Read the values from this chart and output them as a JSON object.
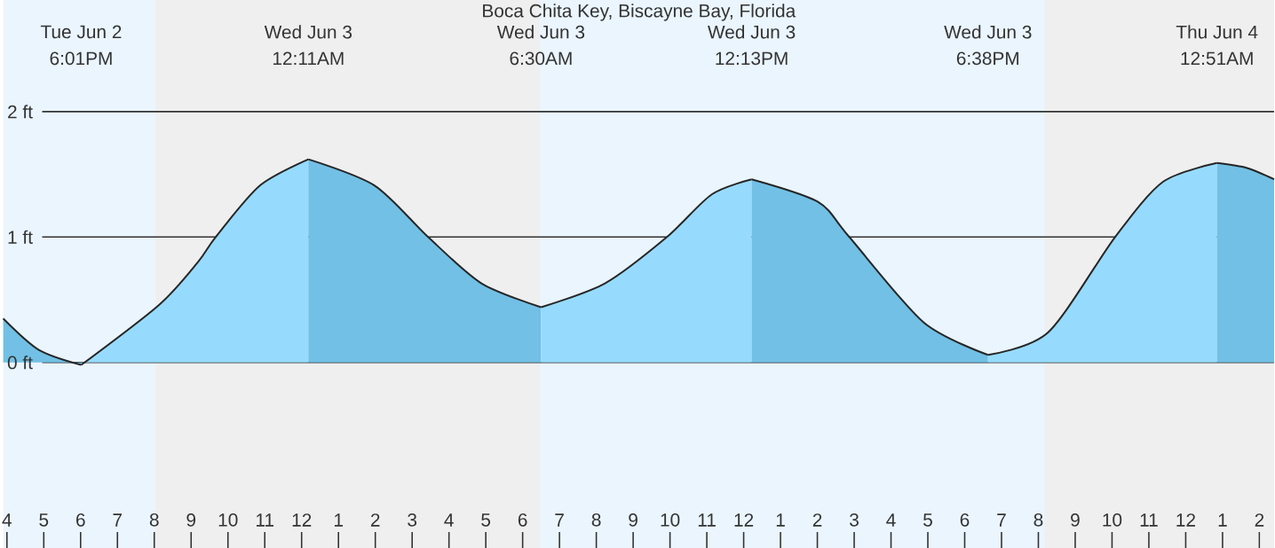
{
  "chart_data": {
    "type": "area",
    "title": "Boca Chita Key, Biscayne Bay, Florida",
    "xlim": [
      "--06-02T15:54",
      "--06-04T02:24"
    ],
    "ylim": [
      -1.48,
      2.89
    ],
    "xticks": [
      {
        "value": "--06-02T16:00",
        "label": "4"
      },
      {
        "value": "--06-02T17:00",
        "label": "5"
      },
      {
        "value": "--06-02T18:00",
        "label": "6"
      },
      {
        "value": "--06-02T19:00",
        "label": "7"
      },
      {
        "value": "--06-02T20:00",
        "label": "8"
      },
      {
        "value": "--06-02T21:00",
        "label": "9"
      },
      {
        "value": "--06-02T22:00",
        "label": "10"
      },
      {
        "value": "--06-02T23:00",
        "label": "11"
      },
      {
        "value": "--06-03T00:00",
        "label": "12"
      },
      {
        "value": "--06-03T01:00",
        "label": "1"
      },
      {
        "value": "--06-03T02:00",
        "label": "2"
      },
      {
        "value": "--06-03T03:00",
        "label": "3"
      },
      {
        "value": "--06-03T04:00",
        "label": "4"
      },
      {
        "value": "--06-03T05:00",
        "label": "5"
      },
      {
        "value": "--06-03T06:00",
        "label": "6"
      },
      {
        "value": "--06-03T07:00",
        "label": "7"
      },
      {
        "value": "--06-03T08:00",
        "label": "8"
      },
      {
        "value": "--06-03T09:00",
        "label": "9"
      },
      {
        "value": "--06-03T10:00",
        "label": "10"
      },
      {
        "value": "--06-03T11:00",
        "label": "11"
      },
      {
        "value": "--06-03T12:00",
        "label": "12"
      },
      {
        "value": "--06-03T13:00",
        "label": "1"
      },
      {
        "value": "--06-03T14:00",
        "label": "2"
      },
      {
        "value": "--06-03T15:00",
        "label": "3"
      },
      {
        "value": "--06-03T16:00",
        "label": "4"
      },
      {
        "value": "--06-03T17:00",
        "label": "5"
      },
      {
        "value": "--06-03T18:00",
        "label": "6"
      },
      {
        "value": "--06-03T19:00",
        "label": "7"
      },
      {
        "value": "--06-03T20:00",
        "label": "8"
      },
      {
        "value": "--06-03T21:00",
        "label": "9"
      },
      {
        "value": "--06-03T22:00",
        "label": "10"
      },
      {
        "value": "--06-03T23:00",
        "label": "11"
      },
      {
        "value": "--06-04T00:00",
        "label": "12"
      },
      {
        "value": "--06-04T01:00",
        "label": "1"
      },
      {
        "value": "--06-04T02:00",
        "label": "2"
      }
    ],
    "yticks": [
      {
        "value": 0,
        "label": "0 ft"
      },
      {
        "value": 1,
        "label": "1 ft"
      },
      {
        "value": 2,
        "label": "2 ft"
      }
    ],
    "grid": "y",
    "bands": [
      {
        "axis": "x",
        "from": "--06-02T20:02",
        "to": "--06-03T06:28",
        "color": "#efefef"
      },
      {
        "axis": "x",
        "from": "--06-03T20:10",
        "to": "--06-04T02:24",
        "color": "#efefef"
      }
    ],
    "series": [
      {
        "color": "#72c0e5",
        "x": [
          "--06-02T15:54",
          "--06-02T16:52",
          "--06-02T18:01"
        ],
        "values": [
          0.35,
          0.1,
          -0.02
        ]
      },
      {
        "color": "#96dbfd",
        "x": [
          "--06-02T18:01",
          "--06-02T20:08",
          "--06-02T21:11",
          "--06-02T21:40",
          "--06-02T22:52",
          "--06-03T00:11"
        ],
        "values": [
          -0.02,
          0.46,
          0.8,
          1.0,
          1.41,
          1.62
        ]
      },
      {
        "color": "#72c0e5",
        "x": [
          "--06-03T00:11",
          "--06-03T01:59",
          "--06-03T03:26",
          "--06-03T04:53",
          "--06-03T06:30"
        ],
        "values": [
          1.62,
          1.41,
          1.0,
          0.63,
          0.44
        ]
      },
      {
        "color": "#96dbfd",
        "x": [
          "--06-03T06:30",
          "--06-03T08:14",
          "--06-03T09:55",
          "--06-03T11:08",
          "--06-03T12:13"
        ],
        "values": [
          0.44,
          0.63,
          1.0,
          1.34,
          1.46
        ]
      },
      {
        "color": "#72c0e5",
        "x": [
          "--06-03T12:13",
          "--06-03T14:01",
          "--06-03T14:52",
          "--06-03T16:53",
          "--06-03T18:38"
        ],
        "values": [
          1.46,
          1.28,
          1.0,
          0.32,
          0.06
        ]
      },
      {
        "color": "#96dbfd",
        "x": [
          "--06-03T18:38",
          "--06-03T20:16",
          "--06-03T22:05",
          "--06-03T23:23",
          "--06-04T00:51"
        ],
        "values": [
          0.06,
          0.24,
          1.0,
          1.44,
          1.59
        ]
      },
      {
        "color": "#72c0e5",
        "x": [
          "--06-04T00:51",
          "--06-04T01:40",
          "--06-04T02:24"
        ],
        "values": [
          1.59,
          1.55,
          1.46
        ]
      }
    ],
    "annotations": [
      "Tue Jun 2",
      "6:01PM",
      "Wed Jun 3",
      "12:11AM",
      "Wed Jun 3",
      "6:30AM",
      "Wed Jun 3",
      "12:13PM",
      "Wed Jun 3",
      "6:38PM",
      "Thu Jun 4",
      "12:51AM"
    ]
  }
}
